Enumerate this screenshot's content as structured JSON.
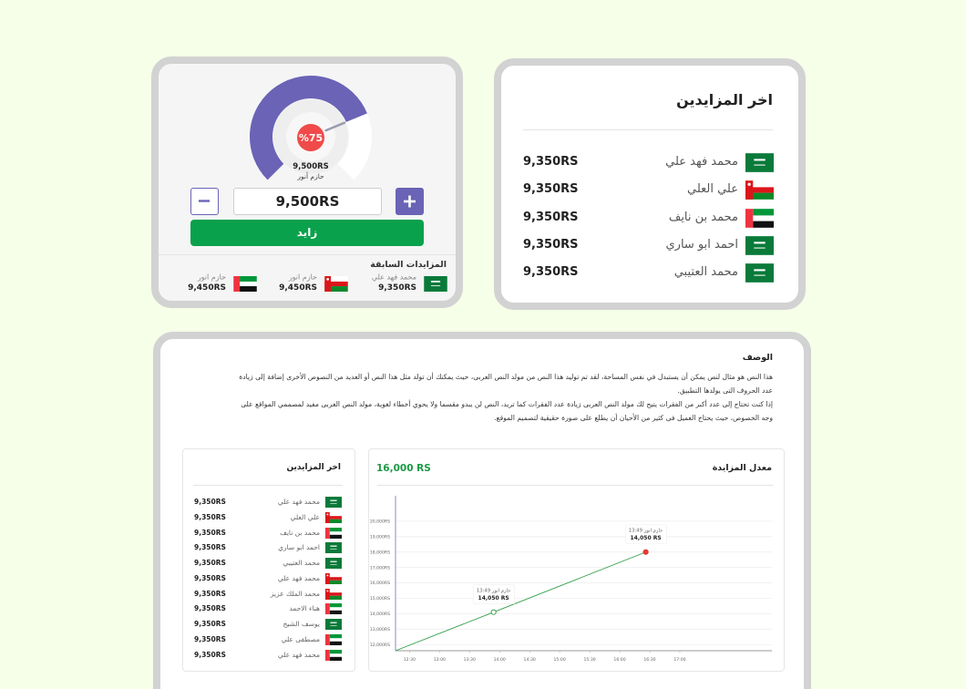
{
  "gauge": {
    "value": 75,
    "value_label": "%75",
    "amount": "9,500RS",
    "bidder": "حازم أنور"
  },
  "bid_form": {
    "amount": "9,500RS",
    "submit": "زايد"
  },
  "previous_bids": {
    "title": "المزايدات السابقة",
    "items": [
      {
        "name": "محمد فهد علي",
        "amount": "9,350RS"
      },
      {
        "name": "حازم انور",
        "amount": "9,450RS"
      },
      {
        "name": "حازم انور",
        "amount": "9,450RS"
      }
    ]
  },
  "latest_bidders": {
    "title": "اخر المزايدين",
    "rows": [
      {
        "name": "محمد فهد علي",
        "amount": "9,350RS"
      },
      {
        "name": "علي العلي",
        "amount": "9,350RS"
      },
      {
        "name": "محمد بن نايف",
        "amount": "9,350RS"
      },
      {
        "name": "احمد ابو ساري",
        "amount": "9,350RS"
      },
      {
        "name": "محمد العتيبي",
        "amount": "9,350RS"
      }
    ]
  },
  "description": {
    "title": "الوصف",
    "paragraphs": [
      "هذا النص هو مثال لنص يمكن أن يستبدل في نفس المساحة، لقد تم توليد هذا النص من مولد النص العربى، حيث يمكنك أن تولد مثل هذا النص أو العديد من النصوص الأخرى إضافة إلى زيادة عدد الحروف التى يولدها التطبيق.",
      "إذا كنت تحتاج إلى عدد أكبر من الفقرات يتيح لك مولد النص العربى زيادة عدد الفقرات كما تريد، النص لن يبدو مقسما ولا يحوي أخطاء لغوية، مولد النص العربى مفيد لمصممي المواقع على وجه الخصوص، حيث يحتاج العميل فى كثير من الأحيان أن يطلع على صورة حقيقية لتصميم الموقع."
    ]
  },
  "bidders_panel": {
    "title": "اخر المزايدين",
    "rows": [
      {
        "name": "محمد فهد علي",
        "amount": "9,350RS"
      },
      {
        "name": "علي العلي",
        "amount": "9,350RS"
      },
      {
        "name": "محمد بن نايف",
        "amount": "9,350RS"
      },
      {
        "name": "احمد ابو ساري",
        "amount": "9,350RS"
      },
      {
        "name": "محمد العتيبي",
        "amount": "9,350RS"
      },
      {
        "name": "محمد فهد علي",
        "amount": "9,350RS"
      },
      {
        "name": "محمد الملك عزيز",
        "amount": "9,350RS"
      },
      {
        "name": "هناء الاحمد",
        "amount": "9,350RS"
      },
      {
        "name": "يوسف الشيخ",
        "amount": "9,350RS"
      },
      {
        "name": "مصطفى علي",
        "amount": "9,350RS"
      },
      {
        "name": "محمد فهد علي",
        "amount": "9,350RS"
      }
    ]
  },
  "chart_data": {
    "type": "line",
    "title": "معدل المزايدة",
    "subtitle": "16,000 RS",
    "x": [
      736,
      834,
      986
    ],
    "values": [
      11600,
      14100,
      18000
    ],
    "color": "#2e9e47",
    "xlim": [
      736,
      1112
    ],
    "xticks": [
      {
        "value": 750,
        "label": "12:30"
      },
      {
        "value": 780,
        "label": "13:00"
      },
      {
        "value": 810,
        "label": "13:30"
      },
      {
        "value": 840,
        "label": "14:00"
      },
      {
        "value": 870,
        "label": "14:30"
      },
      {
        "value": 900,
        "label": "15:00"
      },
      {
        "value": 930,
        "label": "15:30"
      },
      {
        "value": 960,
        "label": "16:00"
      },
      {
        "value": 990,
        "label": "16:30"
      },
      {
        "value": 1020,
        "label": "17:00"
      }
    ],
    "ylim": [
      11600,
      21650
    ],
    "yticks": [
      {
        "value": 12000,
        "label": "12,000RS"
      },
      {
        "value": 13000,
        "label": "13,000RS"
      },
      {
        "value": 14000,
        "label": "14,000RS"
      },
      {
        "value": 15000,
        "label": "15,000RS"
      },
      {
        "value": 16000,
        "label": "16,000RS"
      },
      {
        "value": 17000,
        "label": "17,000RS"
      },
      {
        "value": 18000,
        "label": "18,000RS"
      },
      {
        "value": 19000,
        "label": "19,000RS"
      },
      {
        "value": 20000,
        "label": "20,000RS"
      }
    ],
    "grid": true,
    "annotations": [
      {
        "label": "حازم انور 13:49",
        "value_label": "14,050 RS",
        "color": "#3aa047"
      },
      {
        "label": "حازم انور 13:49",
        "value_label": "14,050 RS",
        "color": "#e53935"
      }
    ]
  }
}
